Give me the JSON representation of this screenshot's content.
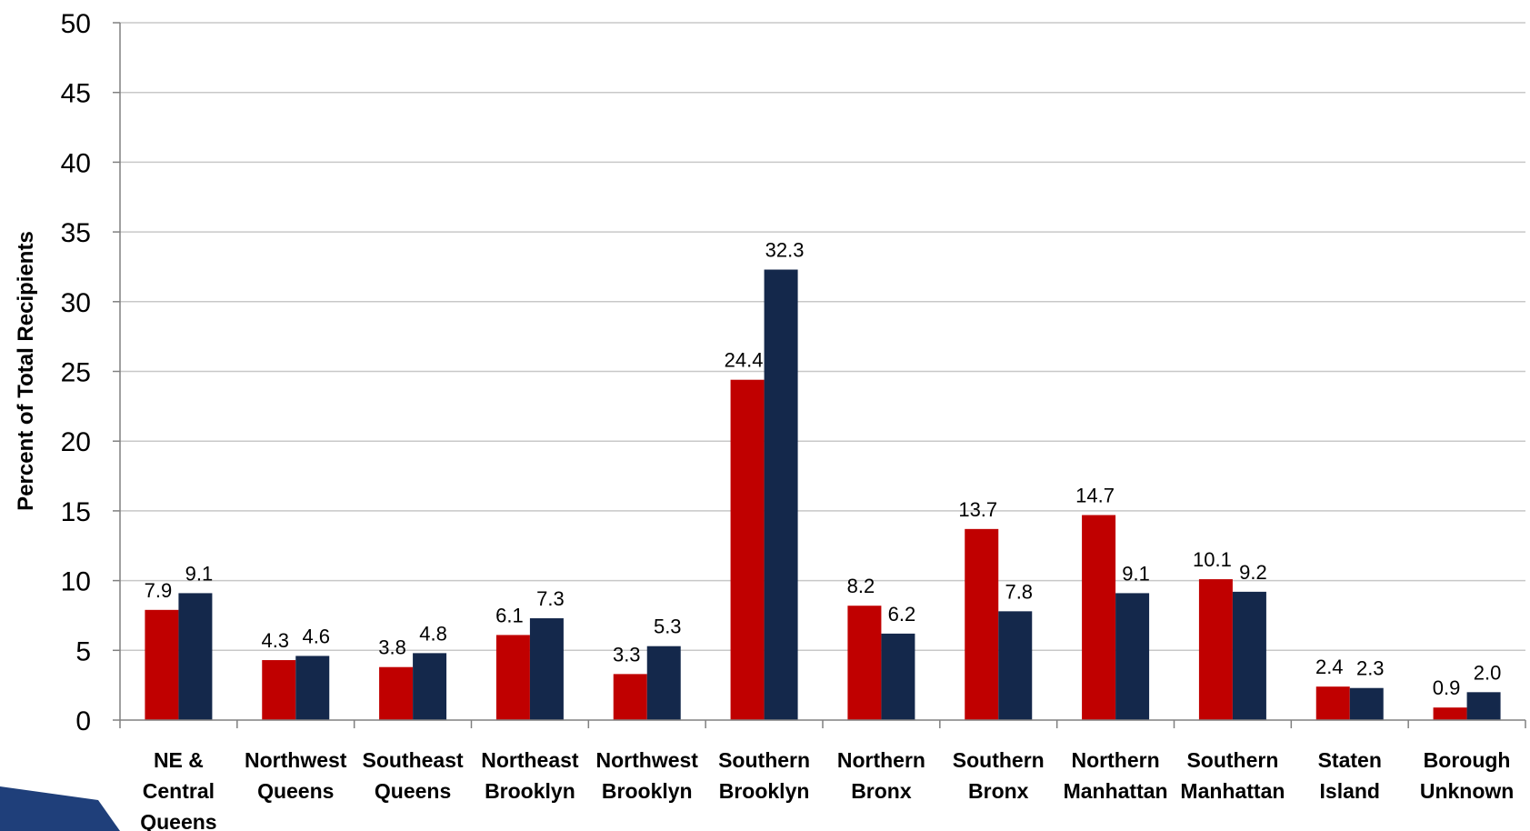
{
  "chart_data": {
    "type": "bar",
    "ylabel": "Percent of Total Recipients",
    "ylim": [
      0,
      50
    ],
    "yticks": [
      0,
      5,
      10,
      15,
      20,
      25,
      30,
      35,
      40,
      45,
      50
    ],
    "grid": true,
    "categories": [
      [
        "NE &",
        "Central",
        "Queens"
      ],
      [
        "Northwest",
        "Queens"
      ],
      [
        "Southeast",
        "Queens"
      ],
      [
        "Northeast",
        "Brooklyn"
      ],
      [
        "Northwest",
        "Brooklyn"
      ],
      [
        "Southern",
        "Brooklyn"
      ],
      [
        "Northern",
        "Bronx"
      ],
      [
        "Southern",
        "Bronx"
      ],
      [
        "Northern",
        "Manhattan"
      ],
      [
        "Southern",
        "Manhattan"
      ],
      [
        "Staten",
        "Island"
      ],
      [
        "Borough",
        "Unknown"
      ]
    ],
    "series": [
      {
        "color": "#c00000",
        "values": [
          7.9,
          4.3,
          3.8,
          6.1,
          3.3,
          24.4,
          8.2,
          13.7,
          14.7,
          10.1,
          2.4,
          0.9
        ],
        "labels": [
          "7.9",
          "4.3",
          "3.8",
          "6.1",
          "3.3",
          "24.4",
          "8.2",
          "13.7",
          "14.7",
          "10.1",
          "2.4",
          "0.9"
        ]
      },
      {
        "color": "#14284b",
        "values": [
          9.1,
          4.6,
          4.8,
          7.3,
          5.3,
          32.3,
          6.2,
          7.8,
          9.1,
          9.2,
          2.3,
          2.0
        ],
        "labels": [
          "9.1",
          "4.6",
          "4.8",
          "7.3",
          "5.3",
          "32.3",
          "6.2",
          "7.8",
          "9.1",
          "9.2",
          "2.3",
          "2.0"
        ]
      }
    ]
  },
  "decoration": {
    "corner_accent_color": "#1f3f7a"
  }
}
